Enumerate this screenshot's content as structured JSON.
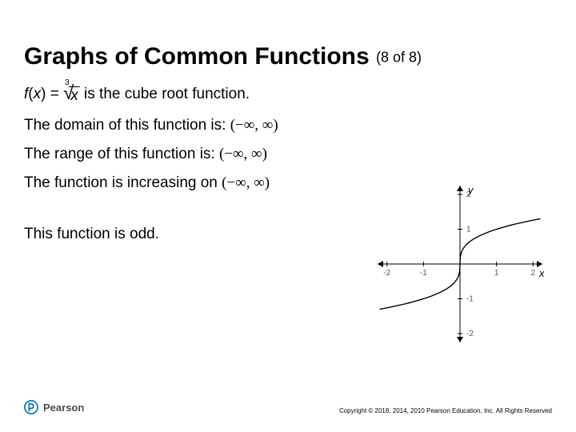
{
  "title": "Graphs of Common Functions",
  "counter": "(8 of 8)",
  "fdef_prefix": "f",
  "fdef_arg": "x",
  "fdef_eq": " = ",
  "cuberoot_idx": "3",
  "cuberoot_arg": "x",
  "fdef_desc": " is the cube root function.",
  "line_domain": "The domain of this function is:",
  "interval_domain": "(−∞, ∞)",
  "line_range": "The range of this function is:",
  "interval_range": "(−∞, ∞)",
  "line_incr_a": "The function is ",
  "line_incr_b": "increasing",
  "line_incr_c": " on ",
  "interval_incr": "(−∞, ∞)",
  "line_odd": "This function is odd.",
  "logo_text": "Pearson",
  "copyright": "Copyright © 2018, 2014, 2010 Pearson Education, Inc. All Rights Reserved",
  "chart": {
    "type": "line",
    "xlim": [
      -2.3,
      2.3
    ],
    "ylim": [
      -2.3,
      2.3
    ],
    "xticks": [
      -2,
      -1,
      1,
      2
    ],
    "yticks": [
      -2,
      -1,
      1,
      2
    ],
    "xlabel": "x",
    "ylabel": "y",
    "axis_color": "#000000",
    "tick_color": "#555555",
    "tick_font": 10,
    "label_font_italic": true,
    "curve_color": "#000000",
    "curve_width": 1.4,
    "points": [
      [
        -2.2,
        -1.301
      ],
      [
        -2.0,
        -1.26
      ],
      [
        -1.8,
        -1.216
      ],
      [
        -1.6,
        -1.17
      ],
      [
        -1.4,
        -1.119
      ],
      [
        -1.2,
        -1.063
      ],
      [
        -1.0,
        -1.0
      ],
      [
        -0.8,
        -0.928
      ],
      [
        -0.6,
        -0.843
      ],
      [
        -0.5,
        -0.794
      ],
      [
        -0.4,
        -0.737
      ],
      [
        -0.3,
        -0.669
      ],
      [
        -0.2,
        -0.585
      ],
      [
        -0.15,
        -0.531
      ],
      [
        -0.1,
        -0.464
      ],
      [
        -0.06,
        -0.391
      ],
      [
        -0.03,
        -0.311
      ],
      [
        -0.01,
        -0.215
      ],
      [
        0,
        0
      ],
      [
        0.01,
        0.215
      ],
      [
        0.03,
        0.311
      ],
      [
        0.06,
        0.391
      ],
      [
        0.1,
        0.464
      ],
      [
        0.15,
        0.531
      ],
      [
        0.2,
        0.585
      ],
      [
        0.3,
        0.669
      ],
      [
        0.4,
        0.737
      ],
      [
        0.5,
        0.794
      ],
      [
        0.6,
        0.843
      ],
      [
        0.8,
        0.928
      ],
      [
        1.0,
        1.0
      ],
      [
        1.2,
        1.063
      ],
      [
        1.4,
        1.119
      ],
      [
        1.6,
        1.17
      ],
      [
        1.8,
        1.216
      ],
      [
        2.0,
        1.26
      ],
      [
        2.2,
        1.301
      ]
    ]
  }
}
